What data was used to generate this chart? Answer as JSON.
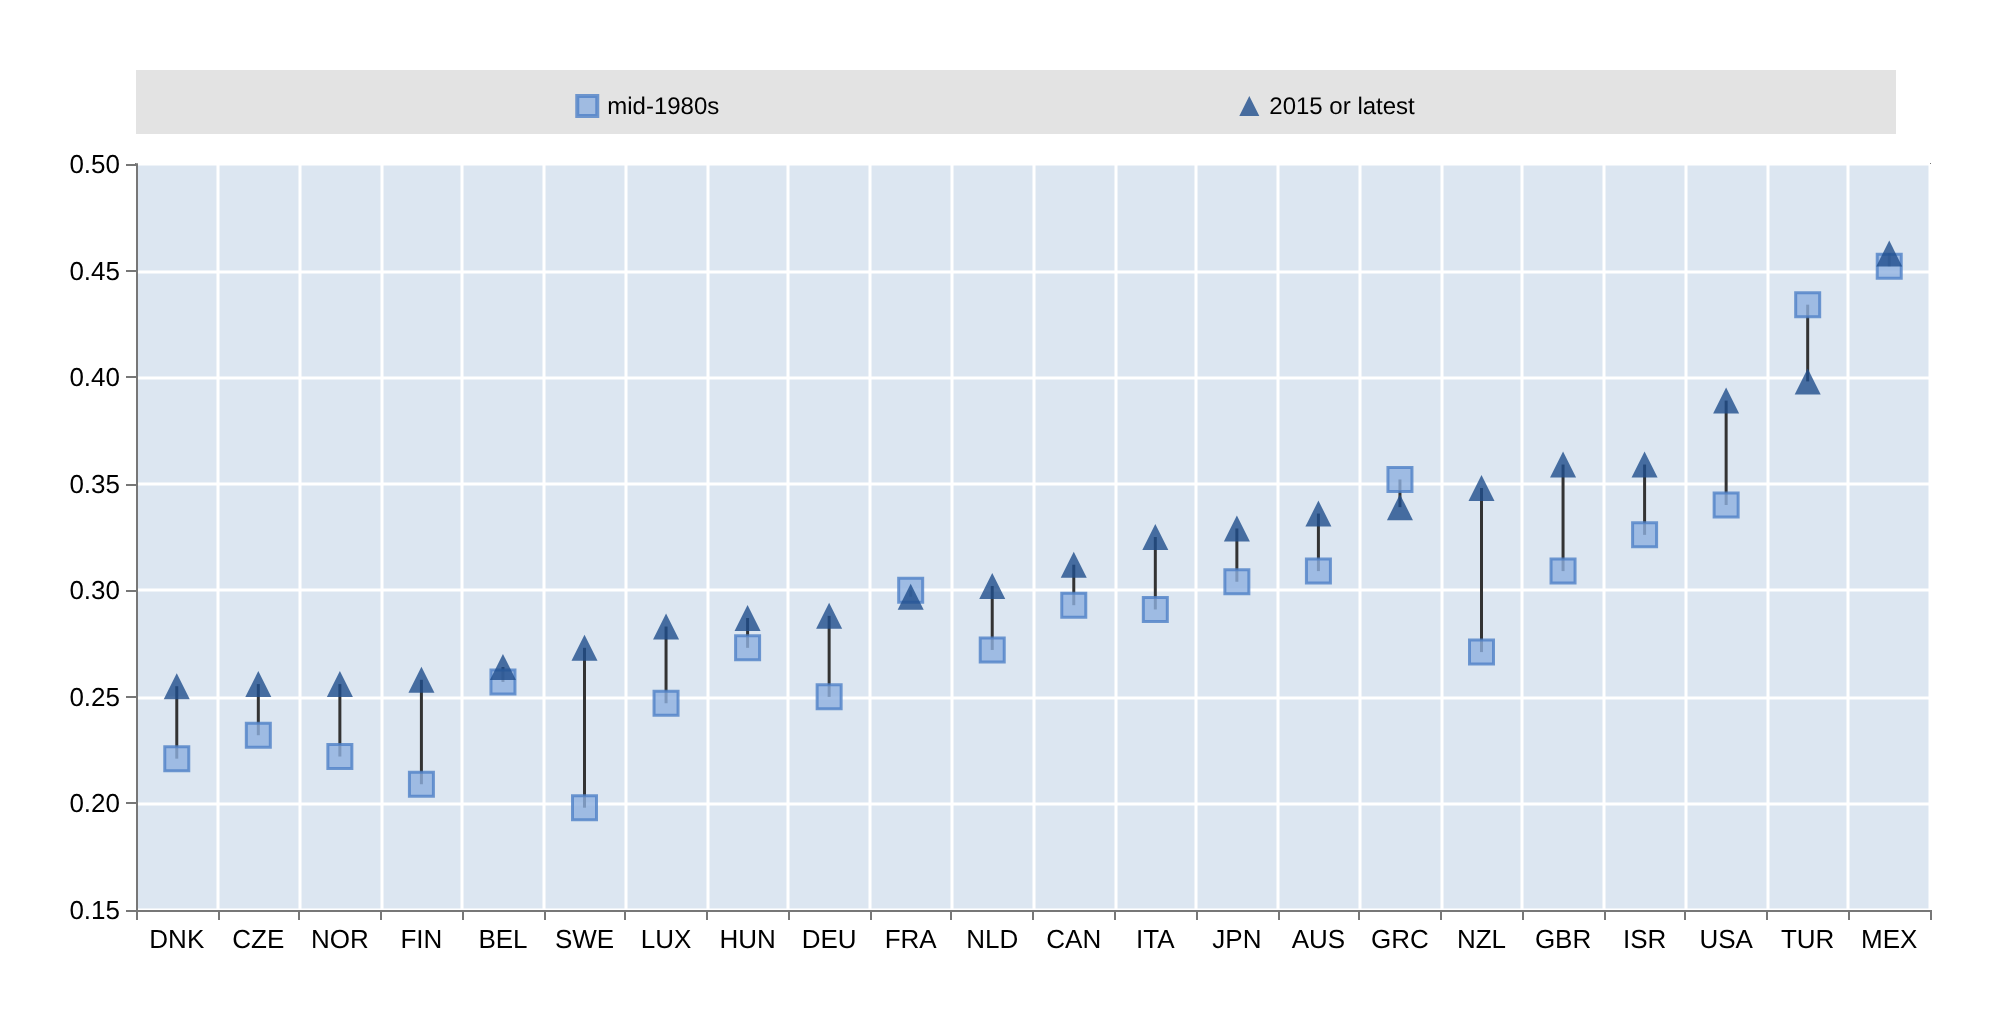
{
  "chart_data": {
    "type": "scatter",
    "categories": [
      "DNK",
      "CZE",
      "NOR",
      "FIN",
      "BEL",
      "SWE",
      "LUX",
      "HUN",
      "DEU",
      "FRA",
      "NLD",
      "CAN",
      "ITA",
      "JPN",
      "AUS",
      "GRC",
      "NZL",
      "GBR",
      "ISR",
      "USA",
      "TUR",
      "MEX"
    ],
    "series": [
      {
        "name": "mid-1980s",
        "color": "#8fb0e0",
        "marker": "square",
        "values": [
          0.221,
          0.232,
          0.222,
          0.209,
          0.257,
          0.198,
          0.247,
          0.273,
          0.25,
          0.3,
          0.272,
          0.293,
          0.291,
          0.304,
          0.309,
          0.352,
          0.271,
          0.309,
          0.326,
          0.34,
          0.434,
          0.452
        ]
      },
      {
        "name": "2015 or latest",
        "color": "#1f4e8c",
        "marker": "triangle",
        "values": [
          0.255,
          0.256,
          0.256,
          0.258,
          0.264,
          0.273,
          0.283,
          0.287,
          0.288,
          0.297,
          0.302,
          0.312,
          0.325,
          0.329,
          0.336,
          0.339,
          0.348,
          0.359,
          0.359,
          0.389,
          0.398,
          0.458
        ]
      }
    ],
    "ylim": [
      0.15,
      0.5
    ],
    "yticks": [
      0.15,
      {
        "value": 0.2,
        "label": "0.20"
      },
      0.25,
      {
        "value": 0.3,
        "label": "0.30"
      },
      0.35,
      {
        "value": 0.4,
        "label": "0.40"
      },
      0.45,
      {
        "value": 0.5,
        "label": "0.50"
      }
    ],
    "grid": true,
    "legend": "top"
  }
}
